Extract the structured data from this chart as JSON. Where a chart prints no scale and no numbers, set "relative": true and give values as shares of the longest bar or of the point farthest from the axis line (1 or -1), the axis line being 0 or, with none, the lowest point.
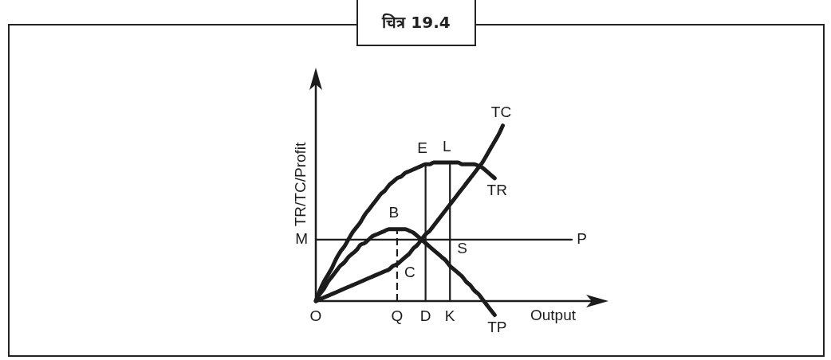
{
  "chart_data": {
    "type": "line",
    "title": "चित्र 19.4",
    "xlabel": "Output",
    "ylabel": "TR/TC/Profit",
    "relative": true,
    "categories": [
      "O",
      null,
      null,
      null,
      null,
      null,
      null,
      null,
      null,
      null,
      null,
      null,
      null,
      null,
      null,
      null,
      null,
      null,
      null,
      null,
      "Q",
      null,
      null,
      null,
      null,
      null,
      null,
      "D",
      null,
      null,
      null,
      null,
      null,
      "K",
      null,
      null,
      null,
      null,
      null,
      null,
      null,
      null,
      null,
      null,
      null,
      null,
      null,
      null,
      null,
      null,
      null,
      null,
      null,
      null,
      null,
      null,
      null,
      null,
      null,
      null,
      null,
      null,
      null,
      null,
      null,
      null,
      null,
      null,
      null,
      null,
      null,
      null,
      null
    ],
    "series": [
      {
        "name": "TR",
        "color": "#1c1c1c",
        "values": [
          0,
          0.06,
          0.11,
          0.15,
          0.19,
          0.24,
          0.28,
          0.31,
          0.35,
          0.39,
          0.42,
          0.45,
          0.49,
          0.52,
          0.55,
          0.58,
          0.61,
          0.63,
          0.66,
          0.68,
          0.7,
          0.71,
          0.73,
          0.74,
          0.75,
          0.76,
          0.77,
          0.78,
          0.78,
          0.79,
          0.79,
          0.79,
          0.79,
          0.79,
          0.79,
          0.79,
          0.78,
          0.78,
          0.78,
          0.78,
          0.77,
          0.76,
          0.74,
          0.72,
          0.7,
          null,
          null,
          null,
          null,
          null,
          null,
          null,
          null,
          null,
          null,
          null,
          null,
          null,
          null,
          null,
          null,
          null,
          null,
          null,
          null,
          null,
          null,
          null,
          null,
          null,
          null,
          null,
          null
        ]
      },
      {
        "name": "TC",
        "color": "#1c1c1c",
        "values": [
          0,
          0.01,
          0.02,
          0.03,
          0.04,
          0.05,
          0.06,
          0.07,
          0.08,
          0.09,
          0.1,
          0.11,
          0.12,
          0.13,
          0.14,
          0.15,
          0.16,
          0.17,
          0.18,
          0.2,
          0.21,
          0.23,
          0.25,
          0.27,
          0.3,
          0.32,
          0.35,
          0.38,
          0.4,
          0.43,
          0.46,
          0.49,
          0.52,
          0.55,
          0.58,
          0.61,
          0.64,
          0.67,
          0.7,
          0.73,
          0.76,
          0.79,
          0.83,
          0.87,
          0.91,
          0.95,
          1,
          null,
          null,
          null,
          null,
          null,
          null,
          null,
          null,
          null,
          null,
          null,
          null,
          null,
          null,
          null,
          null,
          null,
          null,
          null,
          null,
          null,
          null,
          null,
          null,
          null,
          null
        ]
      },
      {
        "name": "TP",
        "color": "#1c1c1c",
        "values": [
          0,
          0.04,
          0.07,
          0.11,
          0.14,
          0.17,
          0.2,
          0.22,
          0.25,
          0.27,
          0.29,
          0.32,
          0.33,
          0.35,
          0.37,
          0.38,
          0.39,
          0.4,
          0.41,
          0.41,
          0.41,
          0.41,
          0.41,
          0.4,
          0.39,
          0.37,
          0.35,
          0.33,
          0.31,
          0.29,
          0.27,
          0.25,
          0.23,
          0.2,
          0.18,
          0.16,
          0.14,
          0.11,
          0.09,
          0.06,
          0.04,
          0.01,
          -0.02,
          -0.05,
          -0.08,
          null,
          null,
          null,
          null,
          null,
          null,
          null,
          null,
          null,
          null,
          null,
          null,
          null,
          null,
          null,
          null,
          null,
          null,
          null,
          null,
          null,
          null,
          null,
          null,
          null,
          null,
          null,
          null
        ]
      },
      {
        "name": "P",
        "color": "#1c1c1c",
        "values": [
          0.35,
          0.35,
          0.35,
          0.35,
          0.35,
          0.35,
          0.35,
          0.35,
          0.35,
          0.35,
          0.35,
          0.35,
          0.35,
          0.35,
          0.35,
          0.35,
          0.35,
          0.35,
          0.35,
          0.35,
          0.35,
          0.35,
          0.35,
          0.35,
          0.35,
          0.35,
          0.35,
          0.35,
          0.35,
          0.35,
          0.35,
          0.35,
          0.35,
          0.35,
          0.35,
          0.35,
          0.35,
          0.35,
          0.35,
          0.35,
          0.35,
          0.35,
          0.35,
          0.35,
          0.35,
          0.35,
          0.35,
          0.35,
          0.35,
          0.35,
          0.35,
          0.35,
          0.35,
          0.35,
          0.35,
          0.35,
          0.35,
          0.35,
          0.35,
          0.35,
          0.35,
          0.35,
          0.35,
          0.35,
          null,
          null,
          null,
          null,
          null,
          null,
          null,
          null,
          null
        ]
      },
      {
        "color": "#1c1c1c",
        "x": [
          "Q",
          "Q"
        ],
        "values": [
          0,
          0.41
        ],
        "line_style": "dashed"
      },
      {
        "color": "#1c1c1c",
        "x": [
          "D",
          "D"
        ],
        "values": [
          0,
          0.78
        ]
      },
      {
        "color": "#1c1c1c",
        "x": [
          "K",
          "K"
        ],
        "values": [
          0,
          0.79
        ]
      }
    ],
    "annotations": [
      {
        "text": "E",
        "x": "D",
        "y": 0.78
      },
      {
        "text": "L",
        "x": "K",
        "y": 0.79
      },
      {
        "text": "B",
        "x": "Q",
        "y": 0.41
      },
      {
        "text": "C",
        "x": "Q",
        "y": 0.21
      },
      {
        "text": "S",
        "x": "K",
        "y": 0.35
      },
      {
        "text": "M",
        "x": "O",
        "y": 0.35
      }
    ]
  }
}
